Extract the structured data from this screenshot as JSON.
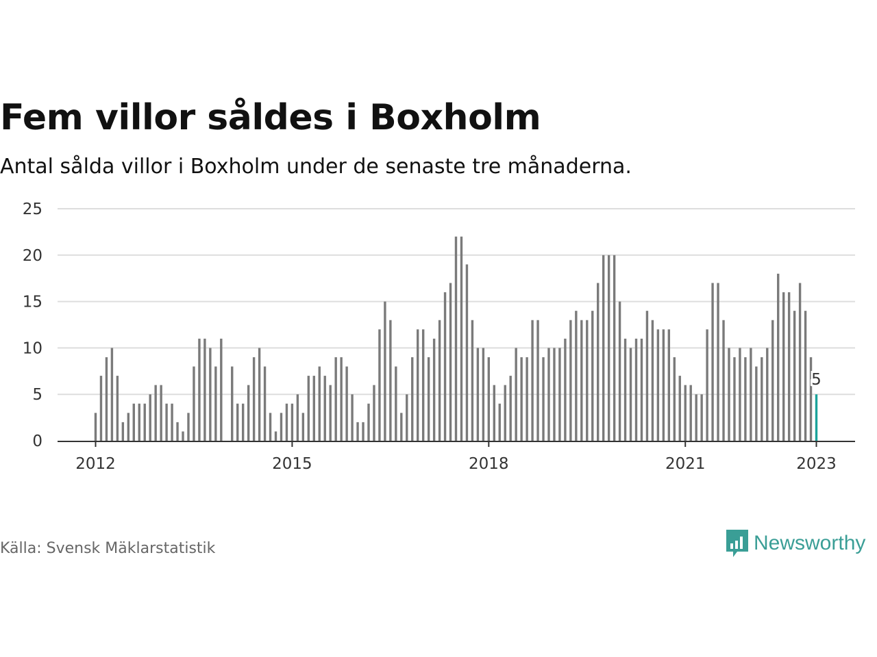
{
  "title": "Fem villor såldes i Boxholm",
  "subtitle": "Antal sålda villor i Boxholm under de senaste tre månaderna.",
  "source": "Källa: Svensk Mäklarstatistik",
  "brand": {
    "name": "Newsworthy",
    "color": "#3a9e96",
    "logo_icon": "bar-chart-speech-bubble-icon"
  },
  "colors": {
    "bar": "#7a7a7a",
    "highlight": "#1aa39a",
    "grid": "#dddddd",
    "axis": "#333333"
  },
  "chart_data": {
    "type": "bar",
    "title": "Fem villor såldes i Boxholm",
    "subtitle": "Antal sålda villor i Boxholm under de senaste tre månaderna.",
    "xlabel": "",
    "ylabel": "",
    "ylim": [
      0,
      25
    ],
    "yticks": [
      "0",
      "5",
      "10",
      "15",
      "20",
      "25"
    ],
    "xticks": [
      "2012",
      "2015",
      "2018",
      "2021",
      "2023"
    ],
    "x_start": "2012-01",
    "grid": true,
    "highlight_label": "5",
    "series": [
      {
        "values": [
          3,
          7,
          9,
          10,
          7,
          2,
          3,
          4,
          4,
          4,
          5,
          6,
          6,
          4,
          4,
          2,
          1,
          3,
          8,
          11,
          11,
          10,
          8,
          11,
          0,
          8,
          4,
          4,
          6,
          9,
          10,
          8,
          3,
          1,
          3,
          4,
          4,
          5,
          3,
          7,
          7,
          8,
          7,
          6,
          9,
          9,
          8,
          5,
          2,
          2,
          4,
          6,
          12,
          15,
          13,
          8,
          3,
          5,
          9,
          12,
          12,
          9,
          11,
          13,
          16,
          17,
          22,
          22,
          19,
          13,
          10,
          10,
          9,
          6,
          4,
          6,
          7,
          10,
          9,
          9,
          13,
          13,
          9,
          10,
          10,
          10,
          11,
          13,
          14,
          13,
          13,
          14,
          17,
          20,
          20,
          20,
          15,
          11,
          10,
          11,
          11,
          14,
          13,
          12,
          12,
          12,
          9,
          7,
          6,
          6,
          5,
          5,
          12,
          17,
          17,
          13,
          10,
          9,
          10,
          9,
          10,
          8,
          9,
          10,
          13,
          18,
          16,
          16,
          14,
          17,
          14,
          9,
          5
        ]
      }
    ]
  }
}
